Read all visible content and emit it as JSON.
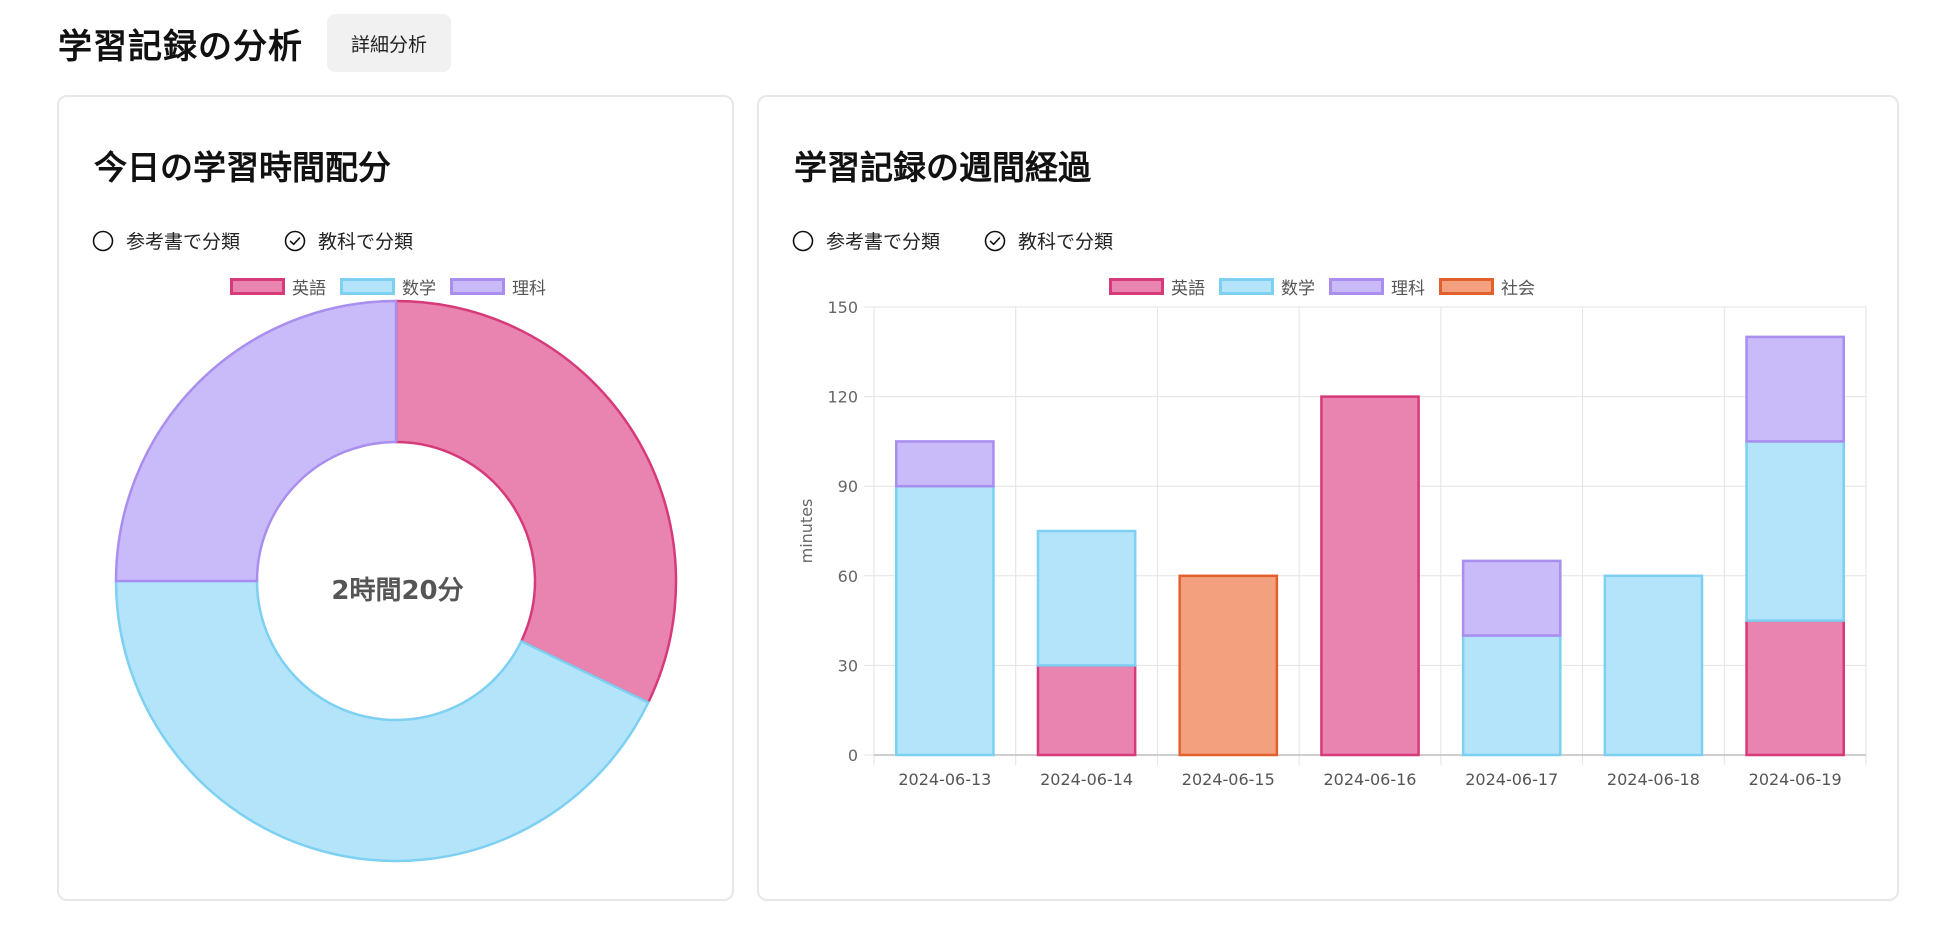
{
  "header": {
    "title": "学習記録の分析",
    "detail_button": "詳細分析"
  },
  "donut_card": {
    "title": "今日の学習時間配分",
    "radio": {
      "option_book": "参考書で分類",
      "option_subject": "教科で分類",
      "selected": "option_subject"
    },
    "center_label": "2時間20分",
    "legend": [
      {
        "label": "英語",
        "fill": "#e983b0",
        "stroke": "#d63a78"
      },
      {
        "label": "数学",
        "fill": "#b3e4fa",
        "stroke": "#7dd0f2"
      },
      {
        "label": "理科",
        "fill": "#c9baf9",
        "stroke": "#a98ef0"
      }
    ]
  },
  "bar_card": {
    "title": "学習記録の週間経過",
    "radio": {
      "option_book": "参考書で分類",
      "option_subject": "教科で分類",
      "selected": "option_subject"
    },
    "legend": [
      {
        "label": "英語",
        "fill": "#e983b0",
        "stroke": "#d63a78"
      },
      {
        "label": "数学",
        "fill": "#b3e4fa",
        "stroke": "#7dd0f2"
      },
      {
        "label": "理科",
        "fill": "#c9baf9",
        "stroke": "#a98ef0"
      },
      {
        "label": "社会",
        "fill": "#f2a07e",
        "stroke": "#e2602e"
      }
    ]
  },
  "chart_data": [
    {
      "type": "pie",
      "subtype": "doughnut",
      "title": "今日の学習時間配分",
      "categories": [
        "英語",
        "数学",
        "理科"
      ],
      "values": [
        45,
        60,
        35
      ],
      "unit": "minutes",
      "center_text": "2時間20分",
      "legend_position": "top",
      "colors": [
        "#e983b0",
        "#b3e4fa",
        "#c9baf9"
      ]
    },
    {
      "type": "bar",
      "stacked": true,
      "title": "学習記録の週間経過",
      "categories": [
        "2024-06-13",
        "2024-06-14",
        "2024-06-15",
        "2024-06-16",
        "2024-06-17",
        "2024-06-18",
        "2024-06-19"
      ],
      "series": [
        {
          "name": "英語",
          "values": [
            0,
            30,
            0,
            120,
            0,
            0,
            45
          ]
        },
        {
          "name": "数学",
          "values": [
            90,
            45,
            0,
            0,
            40,
            60,
            60
          ]
        },
        {
          "name": "理科",
          "values": [
            15,
            0,
            0,
            0,
            25,
            0,
            35
          ]
        },
        {
          "name": "社会",
          "values": [
            0,
            0,
            60,
            0,
            0,
            0,
            0
          ]
        }
      ],
      "ylabel": "minutes",
      "xlabel": "",
      "ylim": [
        0,
        150
      ],
      "yticks": [
        0,
        30,
        60,
        90,
        120,
        150
      ],
      "grid": true,
      "legend_position": "top"
    }
  ]
}
